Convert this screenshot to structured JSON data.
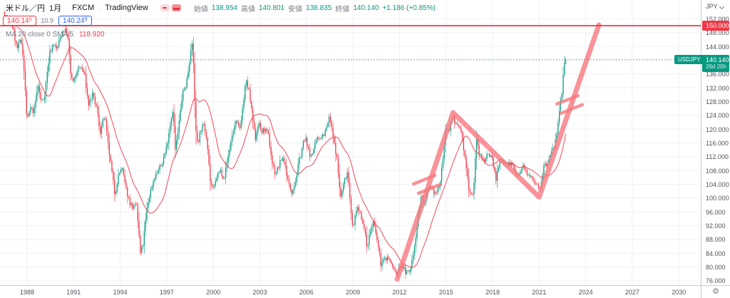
{
  "header": {
    "symbol": "米ドル／円",
    "interval": "1月",
    "exchange": "FXCM",
    "platform": "TradingView",
    "ohlc": {
      "open_label": "始値",
      "open": "138.954",
      "high_label": "高値",
      "high": "140.801",
      "low_label": "安値",
      "low": "138.835",
      "close_label": "終値",
      "close": "140.140",
      "change": "+1.186 (+0.85%)"
    },
    "quote": {
      "bid": "140.140",
      "spread": "10.9",
      "ask": "140.249"
    },
    "indicator": {
      "label": "MA 20 close 0 SMA 5",
      "value": "118.920"
    }
  },
  "price_axis": {
    "unit": "JPY",
    "ticks": [
      "152.000",
      "148.000",
      "144.000",
      "140.000",
      "136.000",
      "132.000",
      "128.000",
      "124.000",
      "120.000",
      "116.000",
      "112.000",
      "108.000",
      "104.000",
      "100.000",
      "96.000",
      "92.000",
      "88.000",
      "84.000",
      "80.000",
      "76.000"
    ]
  },
  "time_axis": {
    "ticks": [
      "1988",
      "1991",
      "1994",
      "1997",
      "2000",
      "2003",
      "2006",
      "2009",
      "2012",
      "2015",
      "2018",
      "2021",
      "2024",
      "2027",
      "2030"
    ]
  },
  "overlays": {
    "level_line": {
      "price": 150.0,
      "label": "150.000"
    },
    "current": {
      "price": 140.14,
      "label": "140.140",
      "countdown": "26d 20h",
      "symbol_label": "USDJPY"
    },
    "trend": {
      "points": [
        [
          2011.85,
          76.5
        ],
        [
          2015.45,
          124.8
        ],
        [
          2021.0,
          100.3
        ],
        [
          2024.85,
          150.2
        ]
      ],
      "break_marks": [
        [
          2012.9,
          104.1,
          2014.28,
          106.6
        ],
        [
          2013.22,
          101.4,
          2014.6,
          103.9
        ],
        [
          2022.13,
          127.3,
          2023.51,
          129.7
        ],
        [
          2022.41,
          124.6,
          2023.78,
          127.1
        ]
      ]
    }
  },
  "colors": {
    "up": "#089981",
    "down": "#f23645",
    "ma": "#f23645",
    "level_red": "#f23645",
    "trend_pink": "#f7787f",
    "grid": "#eef1f7",
    "axis_text": "#51535c"
  },
  "chart_data": {
    "type": "candlestick",
    "title": "USD/JPY monthly candles, FXCM",
    "x_axis": "year (1986.5 - 2030 visible, data ends Sep 2022)",
    "y_axis": "JPY per USD",
    "ylim": [
      75.2,
      153.5
    ],
    "xlim": [
      1986.3,
      2030.9
    ],
    "grid": true,
    "last_candle": {
      "open": 138.954,
      "high": 140.801,
      "low": 138.835,
      "close": 140.14
    },
    "ma": {
      "label": "MA 20 close 0 SMA 5",
      "period": 20,
      "last_value": 118.92
    },
    "anchors_monthly_close": [
      [
        1986.55,
        153
      ],
      [
        1986.9,
        152
      ],
      [
        1987.1,
        149
      ],
      [
        1987.35,
        143
      ],
      [
        1987.6,
        146
      ],
      [
        1987.75,
        141
      ],
      [
        1988.0,
        122
      ],
      [
        1988.2,
        126
      ],
      [
        1988.45,
        125
      ],
      [
        1988.7,
        133
      ],
      [
        1988.9,
        128
      ],
      [
        1989.1,
        129
      ],
      [
        1989.45,
        142
      ],
      [
        1989.7,
        145
      ],
      [
        1989.9,
        143
      ],
      [
        1990.1,
        146
      ],
      [
        1990.35,
        149
      ],
      [
        1990.6,
        148
      ],
      [
        1990.8,
        136
      ],
      [
        1991.0,
        133
      ],
      [
        1991.2,
        137
      ],
      [
        1991.45,
        138
      ],
      [
        1991.7,
        136
      ],
      [
        1991.95,
        127
      ],
      [
        1992.2,
        130
      ],
      [
        1992.5,
        126
      ],
      [
        1992.7,
        119
      ],
      [
        1993.0,
        124
      ],
      [
        1993.2,
        116
      ],
      [
        1993.45,
        108
      ],
      [
        1993.65,
        101
      ],
      [
        1993.85,
        106
      ],
      [
        1994.1,
        109
      ],
      [
        1994.35,
        103
      ],
      [
        1994.6,
        99
      ],
      [
        1994.85,
        97
      ],
      [
        1995.05,
        98
      ],
      [
        1995.3,
        84
      ],
      [
        1995.45,
        86
      ],
      [
        1995.6,
        92
      ],
      [
        1995.75,
        98
      ],
      [
        1995.95,
        102
      ],
      [
        1996.2,
        106
      ],
      [
        1996.45,
        108
      ],
      [
        1996.7,
        110
      ],
      [
        1996.95,
        114
      ],
      [
        1997.2,
        121
      ],
      [
        1997.4,
        126
      ],
      [
        1997.55,
        114
      ],
      [
        1997.75,
        120
      ],
      [
        1998.0,
        130
      ],
      [
        1998.25,
        133
      ],
      [
        1998.45,
        139
      ],
      [
        1998.6,
        146
      ],
      [
        1998.75,
        137
      ],
      [
        1998.85,
        120
      ],
      [
        1999.0,
        116
      ],
      [
        1999.2,
        120
      ],
      [
        1999.4,
        121
      ],
      [
        1999.6,
        117
      ],
      [
        1999.8,
        105
      ],
      [
        2000.0,
        102
      ],
      [
        2000.2,
        106
      ],
      [
        2000.45,
        108
      ],
      [
        2000.7,
        106
      ],
      [
        2000.95,
        112
      ],
      [
        2001.2,
        118
      ],
      [
        2001.45,
        122
      ],
      [
        2001.7,
        120
      ],
      [
        2001.95,
        128
      ],
      [
        2002.1,
        134
      ],
      [
        2002.3,
        131
      ],
      [
        2002.5,
        124
      ],
      [
        2002.7,
        117
      ],
      [
        2002.9,
        122
      ],
      [
        2003.1,
        119
      ],
      [
        2003.3,
        120
      ],
      [
        2003.55,
        118
      ],
      [
        2003.8,
        110
      ],
      [
        2004.0,
        107
      ],
      [
        2004.2,
        109
      ],
      [
        2004.45,
        112
      ],
      [
        2004.6,
        110
      ],
      [
        2004.85,
        104
      ],
      [
        2005.05,
        102
      ],
      [
        2005.3,
        105
      ],
      [
        2005.55,
        111
      ],
      [
        2005.8,
        116
      ],
      [
        2006.0,
        117
      ],
      [
        2006.2,
        112
      ],
      [
        2006.45,
        114
      ],
      [
        2006.7,
        117
      ],
      [
        2006.95,
        118
      ],
      [
        2007.2,
        119
      ],
      [
        2007.5,
        123.5
      ],
      [
        2007.7,
        118
      ],
      [
        2007.95,
        112
      ],
      [
        2008.2,
        100
      ],
      [
        2008.45,
        105
      ],
      [
        2008.65,
        108
      ],
      [
        2008.85,
        98
      ],
      [
        2009.0,
        90
      ],
      [
        2009.2,
        97
      ],
      [
        2009.45,
        96
      ],
      [
        2009.65,
        93
      ],
      [
        2009.9,
        86
      ],
      [
        2010.1,
        90
      ],
      [
        2010.3,
        93
      ],
      [
        2010.55,
        88
      ],
      [
        2010.8,
        81
      ],
      [
        2011.0,
        82
      ],
      [
        2011.25,
        83
      ],
      [
        2011.5,
        80.5
      ],
      [
        2011.8,
        77.8
      ],
      [
        2012.1,
        81
      ],
      [
        2012.4,
        78.5
      ],
      [
        2012.65,
        78.5
      ],
      [
        2012.9,
        84
      ],
      [
        2013.1,
        91
      ],
      [
        2013.4,
        101
      ],
      [
        2013.6,
        98
      ],
      [
        2013.9,
        103
      ],
      [
        2014.1,
        102
      ],
      [
        2014.4,
        101.5
      ],
      [
        2014.65,
        105
      ],
      [
        2014.95,
        119
      ],
      [
        2015.2,
        120
      ],
      [
        2015.45,
        124
      ],
      [
        2015.65,
        121
      ],
      [
        2015.95,
        120
      ],
      [
        2016.2,
        112
      ],
      [
        2016.5,
        102
      ],
      [
        2016.75,
        101
      ],
      [
        2016.95,
        117
      ],
      [
        2017.2,
        112
      ],
      [
        2017.45,
        111
      ],
      [
        2017.7,
        113
      ],
      [
        2017.95,
        112
      ],
      [
        2018.2,
        105.5
      ],
      [
        2018.45,
        110
      ],
      [
        2018.7,
        111
      ],
      [
        2018.95,
        110
      ],
      [
        2019.2,
        110
      ],
      [
        2019.45,
        108
      ],
      [
        2019.65,
        106
      ],
      [
        2019.95,
        109
      ],
      [
        2020.2,
        107.5
      ],
      [
        2020.45,
        107
      ],
      [
        2020.7,
        105
      ],
      [
        2020.95,
        103.5
      ],
      [
        2021.05,
        103
      ],
      [
        2021.3,
        109
      ],
      [
        2021.55,
        110
      ],
      [
        2021.8,
        113.5
      ],
      [
        2021.95,
        115
      ],
      [
        2022.15,
        118
      ],
      [
        2022.3,
        125
      ],
      [
        2022.45,
        130
      ],
      [
        2022.55,
        136
      ],
      [
        2022.62,
        138.5
      ],
      [
        2022.708,
        140.14
      ]
    ]
  }
}
